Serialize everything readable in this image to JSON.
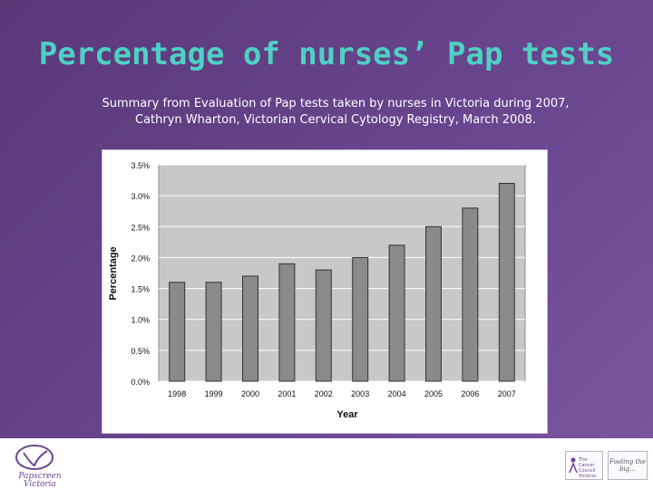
{
  "slide": {
    "title": "Percentage of nurses’ Pap tests",
    "subtitle_line1": "Summary from Evaluation of Pap tests taken by nurses in Victoria during 2007,",
    "subtitle_line2": "Cathryn Wharton, Victorian Cervical Cytology Registry, March 2008."
  },
  "footer": {
    "left_logo_text": "Papscreen Victoria",
    "council_logo_text": "The Cancer Council Victoria",
    "right_logo_text": "Fooling the big..."
  },
  "colors": {
    "title": "#4fd0c4",
    "bar_fill": "#8a8a8a",
    "plot_bg": "#c8c8c8",
    "background": "#6a4690"
  },
  "chart_data": {
    "type": "bar",
    "categories": [
      "1998",
      "1999",
      "2000",
      "2001",
      "2002",
      "2003",
      "2004",
      "2005",
      "2006",
      "2007"
    ],
    "values": [
      1.6,
      1.6,
      1.7,
      1.9,
      1.8,
      2.0,
      2.2,
      2.5,
      2.8,
      3.2
    ],
    "yticks": [
      "0.0%",
      "0.5%",
      "1.0%",
      "1.5%",
      "2.0%",
      "2.5%",
      "3.0%",
      "3.5%"
    ],
    "ylim": [
      0,
      3.5
    ],
    "xlabel": "Year",
    "ylabel": "Percentage",
    "grid": true
  }
}
